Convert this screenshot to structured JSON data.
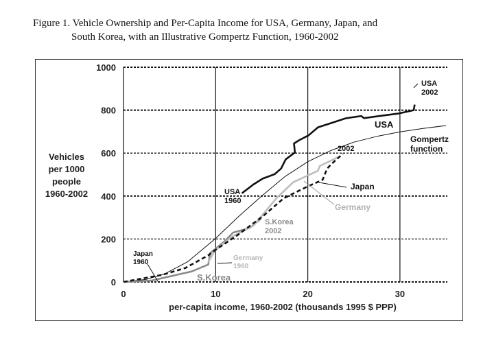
{
  "title_line1": "Figure 1.  Vehicle Ownership and Per-Capita Income for USA, Germany, Japan, and",
  "title_line2": "South Korea, with an Illustrative Gompertz Function, 1960-2002",
  "chart_data": {
    "type": "line",
    "title": "Figure 1. Vehicle Ownership and Per-Capita Income for USA, Germany, Japan, and South Korea, with an Illustrative Gompertz Function, 1960-2002",
    "xlabel": "per-capita income, 1960-2002 (thousands 1995 $ PPP)",
    "ylabel": [
      "Vehicles",
      "per 1000",
      "people",
      "1960-2002"
    ],
    "xlim": [
      0,
      35
    ],
    "ylim": [
      0,
      1000
    ],
    "xticks": [
      0,
      10,
      20,
      30
    ],
    "yticks": [
      0,
      200,
      400,
      600,
      800,
      1000
    ],
    "grid": "horizontal dashed, vertical solid",
    "series": [
      {
        "name": "USA",
        "color": "#111111",
        "style": "solid-thick",
        "x": [
          12.85,
          14.1,
          15.1,
          16.4,
          17.1,
          17.6,
          18.6,
          18.5,
          19.1,
          20.1,
          21.1,
          22.6,
          24.1,
          25.8,
          26.1,
          27.8,
          29.8,
          31.5,
          31.6
        ],
        "y": [
          413,
          454,
          481,
          502,
          528,
          571,
          603,
          645,
          661,
          683,
          720,
          741,
          762,
          773,
          763,
          773,
          784,
          800,
          826
        ]
      },
      {
        "name": "Gompertz function",
        "color": "#111111",
        "style": "thin",
        "x": [
          0,
          2.5,
          4.5,
          7,
          10,
          12.5,
          15,
          17.5,
          20,
          22.5,
          25,
          27.5,
          30,
          32.5,
          35
        ],
        "y": [
          0,
          12,
          38,
          95,
          203,
          305,
          400,
          490,
          560,
          612,
          651,
          678,
          699,
          715,
          728
        ]
      },
      {
        "name": "Japan",
        "color": "#111111",
        "style": "dashed",
        "x": [
          0,
          4.2,
          6.7,
          9.2,
          10,
          12.4,
          15.1,
          17.4,
          19.9,
          21.6,
          22.1,
          22.6,
          23.8
        ],
        "y": [
          0,
          33,
          65,
          124,
          150,
          219,
          305,
          390,
          443,
          475,
          528,
          550,
          597
        ]
      },
      {
        "name": "Germany",
        "color": "#bdbdbd",
        "style": "solid-thick",
        "x": [
          9.2,
          9.9,
          11.7,
          14.1,
          16.6,
          18.4,
          21.1,
          21.3,
          23.3
        ],
        "y": [
          92,
          145,
          209,
          262,
          390,
          464,
          518,
          540,
          581
        ]
      },
      {
        "name": "S.Korea",
        "color": "#8a8a8a",
        "style": "solid-thick",
        "x": [
          0,
          3,
          7.4,
          9.2,
          9.4,
          10.9,
          11.9,
          13.7,
          14.9
        ],
        "y": [
          0,
          6,
          49,
          81,
          134,
          187,
          230,
          251,
          294
        ]
      }
    ],
    "annotations": [
      {
        "id": "usa2002",
        "lines": [
          "USA",
          "2002"
        ],
        "color": "#111111"
      },
      {
        "id": "usa",
        "lines": [
          "USA"
        ],
        "color": "#111111"
      },
      {
        "id": "gompertz",
        "lines": [
          "Gompertz",
          "function"
        ],
        "color": "#111111"
      },
      {
        "id": "j2002",
        "lines": [
          "2002"
        ],
        "color": "#111111"
      },
      {
        "id": "japan",
        "lines": [
          "Japan"
        ],
        "color": "#111111"
      },
      {
        "id": "germany",
        "lines": [
          "Germany"
        ],
        "color": "#b0b0b0"
      },
      {
        "id": "usa1960",
        "lines": [
          "USA",
          "1960"
        ],
        "color": "#111111"
      },
      {
        "id": "skorea2002",
        "lines": [
          "S.Korea",
          "2002"
        ],
        "color": "#8a8a8a"
      },
      {
        "id": "japan1960",
        "lines": [
          "Japan",
          "1960"
        ],
        "color": "#111111"
      },
      {
        "id": "germany1960",
        "lines": [
          "Germany",
          "1960"
        ],
        "color": "#b8b8b8"
      },
      {
        "id": "skorea",
        "lines": [
          "S.Korea"
        ],
        "color": "#8a8a8a"
      }
    ]
  }
}
